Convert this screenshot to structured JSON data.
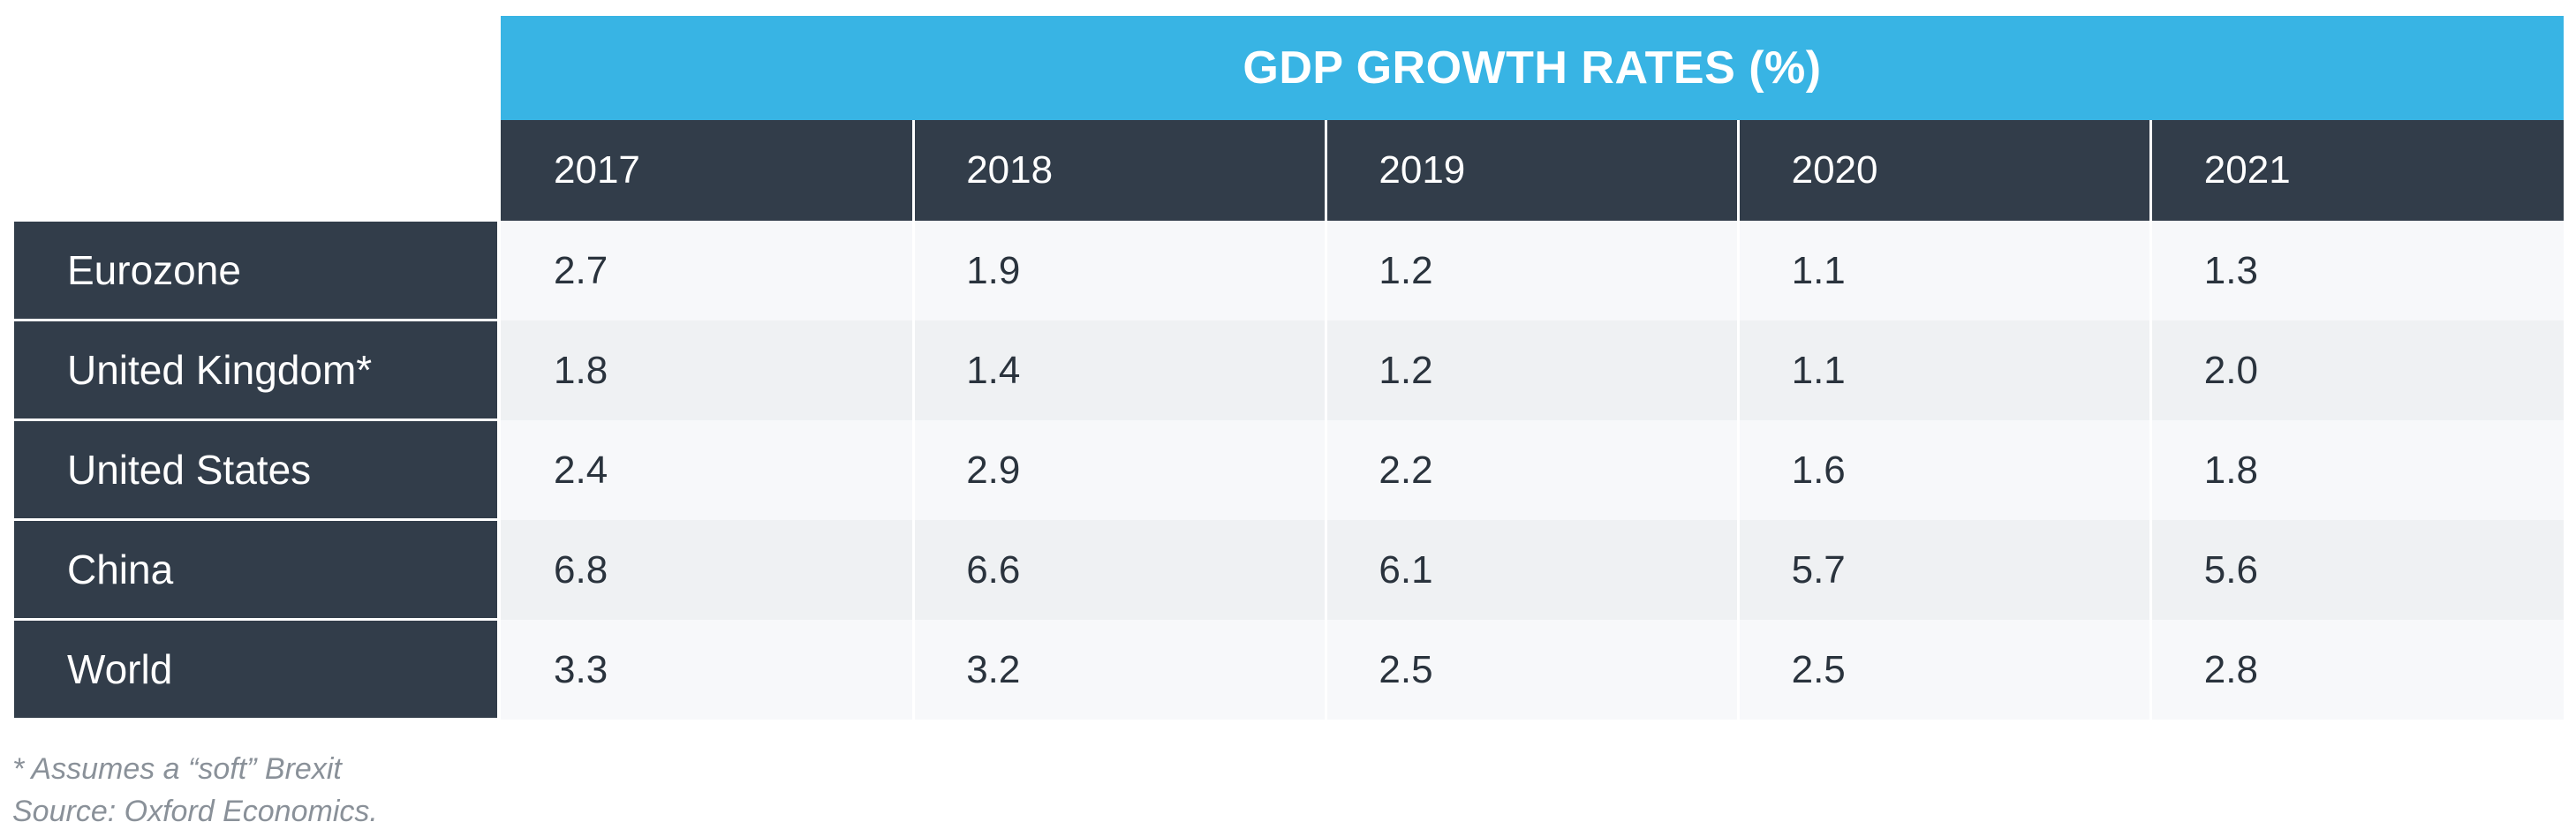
{
  "chart_data": {
    "type": "table",
    "title": "GDP GROWTH RATES (%)",
    "columns": [
      "2017",
      "2018",
      "2019",
      "2020",
      "2021"
    ],
    "rows": [
      {
        "label": "Eurozone",
        "values": [
          "2.7",
          "1.9",
          "1.2",
          "1.1",
          "1.3"
        ]
      },
      {
        "label": "United Kingdom*",
        "values": [
          "1.8",
          "1.4",
          "1.2",
          "1.1",
          "2.0"
        ]
      },
      {
        "label": "United States",
        "values": [
          "2.4",
          "2.9",
          "2.2",
          "1.6",
          "1.8"
        ]
      },
      {
        "label": "China",
        "values": [
          "6.8",
          "6.6",
          "6.1",
          "5.7",
          "5.6"
        ]
      },
      {
        "label": "World",
        "values": [
          "3.3",
          "3.2",
          "2.5",
          "2.5",
          "2.8"
        ]
      }
    ],
    "footnotes": [
      "* Assumes a “soft” Brexit",
      "Source: Oxford Economics."
    ]
  },
  "colors": {
    "title_bg": "#38b4e4",
    "header_bg": "#323d4a",
    "row_light": "#f7f8fa",
    "row_dark": "#eff1f3",
    "cell_text": "#2a333d",
    "footnote_text": "#8a9199"
  }
}
